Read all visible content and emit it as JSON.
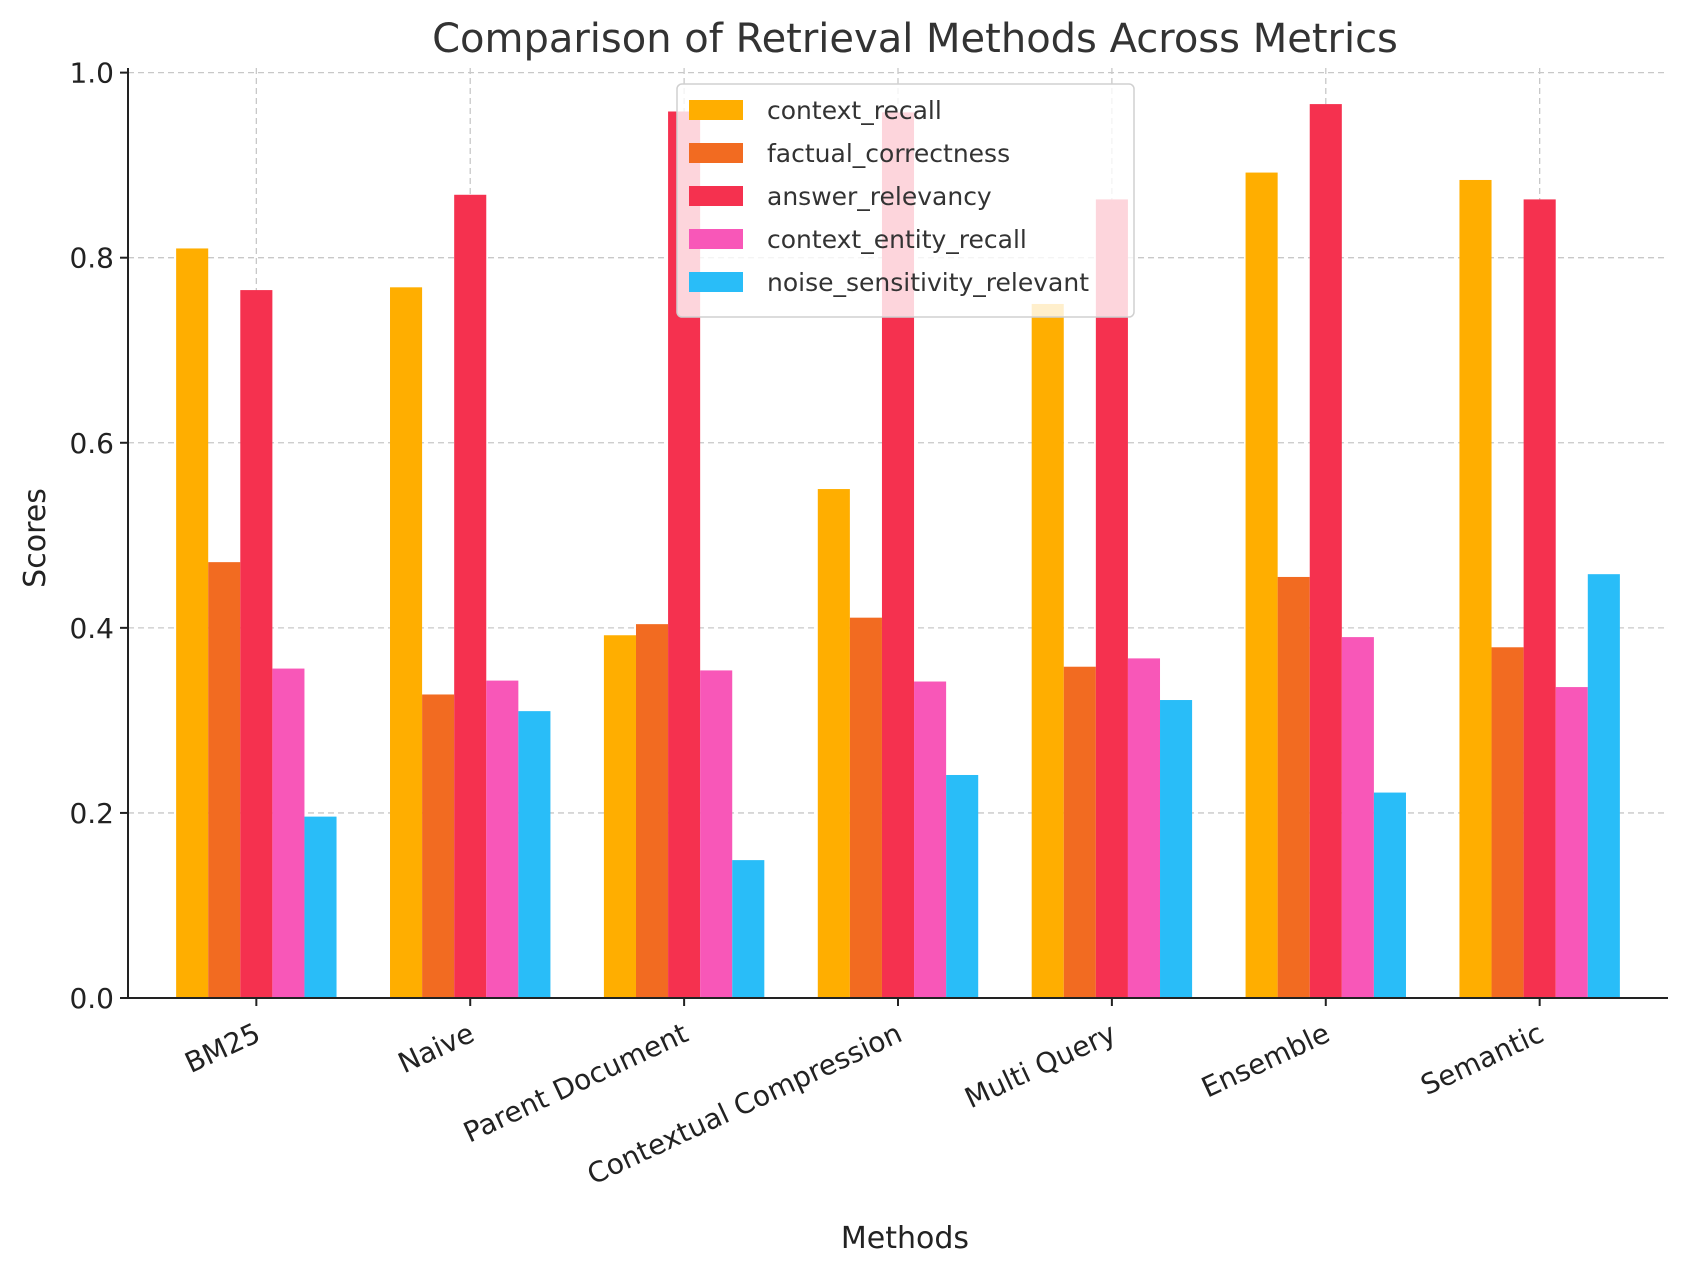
{
  "chart_data": {
    "type": "bar",
    "title": "Comparison of Retrieval Methods Across Metrics",
    "xlabel": "Methods",
    "ylabel": "Scores",
    "ylim": [
      0,
      1.0
    ],
    "yticks": [
      0.0,
      0.2,
      0.4,
      0.6,
      0.8,
      1.0
    ],
    "ytick_labels": [
      "0.0",
      "0.2",
      "0.4",
      "0.6",
      "0.8",
      "1.0"
    ],
    "grid": true,
    "legend_position": "top-center",
    "categories": [
      "BM25",
      "Naive",
      "Parent Document",
      "Contextual Compression",
      "Multi Query",
      "Ensemble",
      "Semantic"
    ],
    "series": [
      {
        "name": "context_recall",
        "color": "#FFAE00",
        "values": [
          0.81,
          0.768,
          0.392,
          0.55,
          0.75,
          0.892,
          0.884
        ]
      },
      {
        "name": "factual_correctness",
        "color": "#F26B21",
        "values": [
          0.471,
          0.328,
          0.404,
          0.411,
          0.358,
          0.455,
          0.379
        ]
      },
      {
        "name": "answer_relevancy",
        "color": "#F5314F",
        "values": [
          0.765,
          0.868,
          0.958,
          0.957,
          0.863,
          0.966,
          0.863
        ]
      },
      {
        "name": "context_entity_recall",
        "color": "#F857B8",
        "values": [
          0.356,
          0.343,
          0.354,
          0.342,
          0.367,
          0.39,
          0.336
        ]
      },
      {
        "name": "noise_sensitivity_relevant",
        "color": "#29BDF8",
        "values": [
          0.196,
          0.31,
          0.149,
          0.241,
          0.322,
          0.222,
          0.458
        ]
      }
    ]
  }
}
